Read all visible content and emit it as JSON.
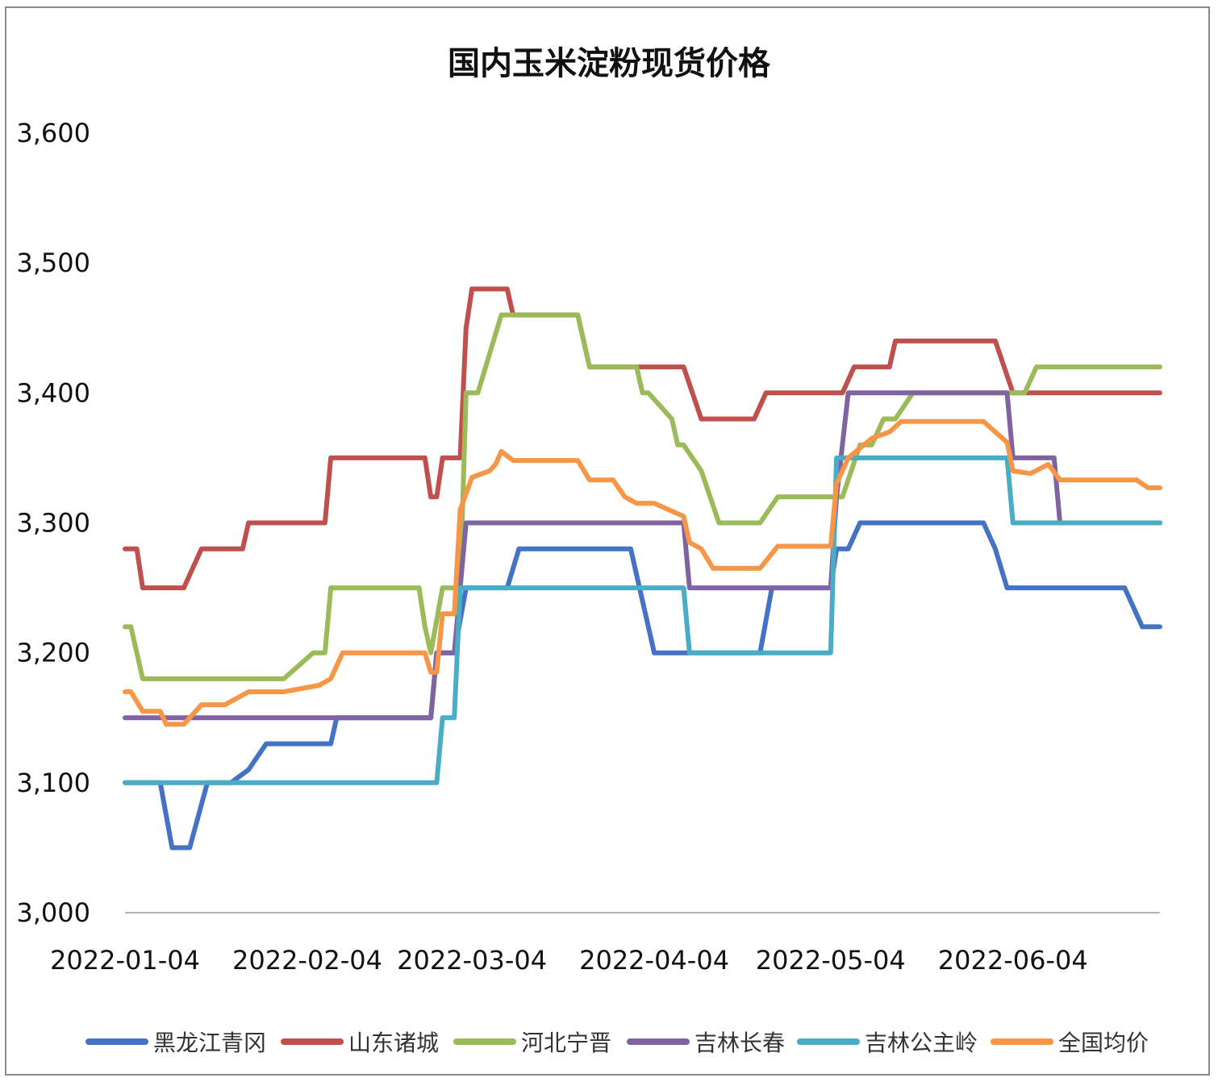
{
  "chart_data": {
    "type": "line",
    "title": "国内玉米淀粉现货价格",
    "xlabel": "",
    "ylabel": "",
    "ylim": [
      3000,
      3600
    ],
    "y_ticks": [
      "3,000",
      "3,100",
      "3,200",
      "3,300",
      "3,400",
      "3,500",
      "3,600"
    ],
    "x_tick_labels": [
      "2022-01-04",
      "2022-02-04",
      "2022-03-04",
      "2022-04-04",
      "2022-05-04",
      "2022-06-04"
    ],
    "x_ticks": [
      "2022-01-04",
      "2022-02-04",
      "2022-03-04",
      "2022-04-04",
      "2022-05-04",
      "2022-06-04"
    ],
    "x_range": [
      "2022-01-04",
      "2022-06-29"
    ],
    "legend_position": "bottom",
    "grid": false,
    "series": [
      {
        "name": "黑龙江青冈",
        "color": "#4472C4",
        "points": [
          [
            "2022-01-04",
            3100
          ],
          [
            "2022-01-10",
            3100
          ],
          [
            "2022-01-12",
            3050
          ],
          [
            "2022-01-15",
            3050
          ],
          [
            "2022-01-18",
            3100
          ],
          [
            "2022-01-22",
            3100
          ],
          [
            "2022-01-25",
            3110
          ],
          [
            "2022-01-28",
            3130
          ],
          [
            "2022-02-04",
            3130
          ],
          [
            "2022-02-08",
            3130
          ],
          [
            "2022-02-09",
            3150
          ],
          [
            "2022-02-25",
            3150
          ],
          [
            "2022-02-26",
            3200
          ],
          [
            "2022-03-01",
            3200
          ],
          [
            "2022-03-03",
            3250
          ],
          [
            "2022-03-10",
            3250
          ],
          [
            "2022-03-12",
            3280
          ],
          [
            "2022-03-31",
            3280
          ],
          [
            "2022-04-02",
            3240
          ],
          [
            "2022-04-04",
            3200
          ],
          [
            "2022-04-12",
            3200
          ],
          [
            "2022-04-22",
            3200
          ],
          [
            "2022-04-24",
            3250
          ],
          [
            "2022-05-04",
            3250
          ],
          [
            "2022-05-05",
            3280
          ],
          [
            "2022-05-07",
            3280
          ],
          [
            "2022-05-09",
            3300
          ],
          [
            "2022-05-30",
            3300
          ],
          [
            "2022-06-01",
            3280
          ],
          [
            "2022-06-03",
            3250
          ],
          [
            "2022-06-23",
            3250
          ],
          [
            "2022-06-26",
            3220
          ],
          [
            "2022-06-29",
            3220
          ]
        ]
      },
      {
        "name": "山东诸城",
        "color": "#C0504D",
        "points": [
          [
            "2022-01-04",
            3280
          ],
          [
            "2022-01-06",
            3280
          ],
          [
            "2022-01-07",
            3250
          ],
          [
            "2022-01-14",
            3250
          ],
          [
            "2022-01-17",
            3280
          ],
          [
            "2022-01-24",
            3280
          ],
          [
            "2022-01-25",
            3300
          ],
          [
            "2022-02-07",
            3300
          ],
          [
            "2022-02-08",
            3350
          ],
          [
            "2022-02-24",
            3350
          ],
          [
            "2022-02-25",
            3320
          ],
          [
            "2022-02-26",
            3320
          ],
          [
            "2022-02-27",
            3350
          ],
          [
            "2022-03-02",
            3350
          ],
          [
            "2022-03-03",
            3450
          ],
          [
            "2022-03-04",
            3480
          ],
          [
            "2022-03-10",
            3480
          ],
          [
            "2022-03-11",
            3460
          ],
          [
            "2022-03-22",
            3460
          ],
          [
            "2022-03-24",
            3420
          ],
          [
            "2022-04-09",
            3420
          ],
          [
            "2022-04-12",
            3380
          ],
          [
            "2022-04-21",
            3380
          ],
          [
            "2022-04-23",
            3400
          ],
          [
            "2022-05-06",
            3400
          ],
          [
            "2022-05-08",
            3420
          ],
          [
            "2022-05-14",
            3420
          ],
          [
            "2022-05-15",
            3440
          ],
          [
            "2022-06-01",
            3440
          ],
          [
            "2022-06-04",
            3400
          ],
          [
            "2022-06-29",
            3400
          ]
        ]
      },
      {
        "name": "河北宁晋",
        "color": "#9BBB59",
        "points": [
          [
            "2022-01-04",
            3220
          ],
          [
            "2022-01-05",
            3220
          ],
          [
            "2022-01-07",
            3180
          ],
          [
            "2022-01-31",
            3180
          ],
          [
            "2022-02-05",
            3200
          ],
          [
            "2022-02-07",
            3200
          ],
          [
            "2022-02-08",
            3250
          ],
          [
            "2022-02-23",
            3250
          ],
          [
            "2022-02-24",
            3220
          ],
          [
            "2022-02-25",
            3200
          ],
          [
            "2022-02-27",
            3250
          ],
          [
            "2022-03-02",
            3250
          ],
          [
            "2022-03-03",
            3400
          ],
          [
            "2022-03-05",
            3400
          ],
          [
            "2022-03-09",
            3460
          ],
          [
            "2022-03-22",
            3460
          ],
          [
            "2022-03-24",
            3420
          ],
          [
            "2022-04-01",
            3420
          ],
          [
            "2022-04-02",
            3400
          ],
          [
            "2022-04-03",
            3400
          ],
          [
            "2022-04-07",
            3380
          ],
          [
            "2022-04-08",
            3360
          ],
          [
            "2022-04-09",
            3360
          ],
          [
            "2022-04-12",
            3340
          ],
          [
            "2022-04-15",
            3300
          ],
          [
            "2022-04-22",
            3300
          ],
          [
            "2022-04-25",
            3320
          ],
          [
            "2022-05-06",
            3320
          ],
          [
            "2022-05-09",
            3360
          ],
          [
            "2022-05-11",
            3360
          ],
          [
            "2022-05-13",
            3380
          ],
          [
            "2022-05-15",
            3380
          ],
          [
            "2022-05-18",
            3400
          ],
          [
            "2022-06-04",
            3400
          ],
          [
            "2022-06-06",
            3400
          ],
          [
            "2022-06-08",
            3420
          ],
          [
            "2022-06-29",
            3420
          ]
        ]
      },
      {
        "name": "吉林长春",
        "color": "#8064A2",
        "points": [
          [
            "2022-01-04",
            3150
          ],
          [
            "2022-02-25",
            3150
          ],
          [
            "2022-02-26",
            3200
          ],
          [
            "2022-03-01",
            3200
          ],
          [
            "2022-03-03",
            3300
          ],
          [
            "2022-04-09",
            3300
          ],
          [
            "2022-04-10",
            3250
          ],
          [
            "2022-05-04",
            3250
          ],
          [
            "2022-05-05",
            3320
          ],
          [
            "2022-05-07",
            3400
          ],
          [
            "2022-06-03",
            3400
          ],
          [
            "2022-06-04",
            3350
          ],
          [
            "2022-06-11",
            3350
          ],
          [
            "2022-06-12",
            3300
          ],
          [
            "2022-06-29",
            3300
          ]
        ]
      },
      {
        "name": "吉林公主岭",
        "color": "#4BACC6",
        "points": [
          [
            "2022-01-04",
            3100
          ],
          [
            "2022-02-26",
            3100
          ],
          [
            "2022-02-27",
            3150
          ],
          [
            "2022-03-01",
            3150
          ],
          [
            "2022-03-02",
            3250
          ],
          [
            "2022-04-09",
            3250
          ],
          [
            "2022-04-10",
            3200
          ],
          [
            "2022-05-04",
            3200
          ],
          [
            "2022-05-05",
            3350
          ],
          [
            "2022-06-03",
            3350
          ],
          [
            "2022-06-04",
            3300
          ],
          [
            "2022-06-29",
            3300
          ]
        ]
      },
      {
        "name": "全国均价",
        "color": "#F79646",
        "points": [
          [
            "2022-01-04",
            3170
          ],
          [
            "2022-01-05",
            3170
          ],
          [
            "2022-01-07",
            3155
          ],
          [
            "2022-01-10",
            3155
          ],
          [
            "2022-01-11",
            3145
          ],
          [
            "2022-01-14",
            3145
          ],
          [
            "2022-01-17",
            3160
          ],
          [
            "2022-01-21",
            3160
          ],
          [
            "2022-01-25",
            3170
          ],
          [
            "2022-01-31",
            3170
          ],
          [
            "2022-02-06",
            3175
          ],
          [
            "2022-02-08",
            3180
          ],
          [
            "2022-02-10",
            3200
          ],
          [
            "2022-02-24",
            3200
          ],
          [
            "2022-02-25",
            3185
          ],
          [
            "2022-02-26",
            3185
          ],
          [
            "2022-02-27",
            3230
          ],
          [
            "2022-03-01",
            3230
          ],
          [
            "2022-03-02",
            3310
          ],
          [
            "2022-03-04",
            3335
          ],
          [
            "2022-03-07",
            3340
          ],
          [
            "2022-03-08",
            3345
          ],
          [
            "2022-03-09",
            3355
          ],
          [
            "2022-03-11",
            3348
          ],
          [
            "2022-03-22",
            3348
          ],
          [
            "2022-03-24",
            3333
          ],
          [
            "2022-03-28",
            3333
          ],
          [
            "2022-03-30",
            3320
          ],
          [
            "2022-04-01",
            3315
          ],
          [
            "2022-04-04",
            3315
          ],
          [
            "2022-04-09",
            3305
          ],
          [
            "2022-04-10",
            3285
          ],
          [
            "2022-04-12",
            3280
          ],
          [
            "2022-04-14",
            3265
          ],
          [
            "2022-04-22",
            3265
          ],
          [
            "2022-04-25",
            3282
          ],
          [
            "2022-05-04",
            3282
          ],
          [
            "2022-05-05",
            3330
          ],
          [
            "2022-05-07",
            3350
          ],
          [
            "2022-05-11",
            3365
          ],
          [
            "2022-05-14",
            3370
          ],
          [
            "2022-05-16",
            3378
          ],
          [
            "2022-05-30",
            3378
          ],
          [
            "2022-06-01",
            3370
          ],
          [
            "2022-06-03",
            3362
          ],
          [
            "2022-06-04",
            3340
          ],
          [
            "2022-06-07",
            3338
          ],
          [
            "2022-06-10",
            3345
          ],
          [
            "2022-06-12",
            3333
          ],
          [
            "2022-06-25",
            3333
          ],
          [
            "2022-06-27",
            3327
          ],
          [
            "2022-06-29",
            3327
          ]
        ]
      }
    ]
  }
}
